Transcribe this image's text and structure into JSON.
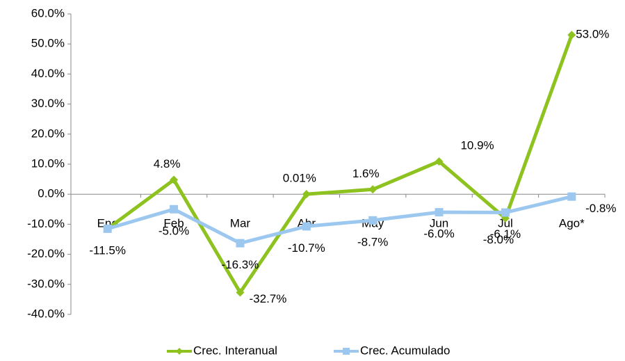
{
  "chart_data": {
    "type": "line",
    "categories": [
      "Ene",
      "Feb",
      "Mar",
      "Abr",
      "May",
      "Jun",
      "Jul",
      "Ago*"
    ],
    "series": [
      {
        "name": "Crec. Interanual",
        "color": "#8dc21f",
        "marker": "diamond",
        "values": [
          -11.5,
          4.8,
          -32.7,
          0.01,
          1.6,
          10.9,
          -8.0,
          53.0
        ],
        "value_labels": [
          null,
          "4.8%",
          "-32.7%",
          "0.01%",
          "1.6%",
          "10.9%",
          "-8.0%",
          "53.0%"
        ]
      },
      {
        "name": "Crec. Acumulado",
        "color": "#9cc8f0",
        "marker": "square",
        "values": [
          -11.5,
          -5.0,
          -16.3,
          -10.7,
          -8.7,
          -6.0,
          -6.1,
          -0.8
        ],
        "value_labels": [
          "-11.5%",
          "-5.0%",
          "-16.3%",
          "-10.7%",
          "-8.7%",
          "-6.0%",
          "-6.1%",
          "-0.8%"
        ]
      }
    ],
    "ylim": [
      -40,
      60
    ],
    "yticks": [
      {
        "value": -40,
        "label": "-40.0%"
      },
      {
        "value": -30,
        "label": "-30.0%"
      },
      {
        "value": -20,
        "label": "-20.0%"
      },
      {
        "value": -10,
        "label": "-10.0%"
      },
      {
        "value": 0,
        "label": "0.0%"
      },
      {
        "value": 10,
        "label": "10.0%"
      },
      {
        "value": 20,
        "label": "20.0%"
      },
      {
        "value": 30,
        "label": "30.0%"
      },
      {
        "value": 40,
        "label": "40.0%"
      },
      {
        "value": 50,
        "label": "50.0%"
      },
      {
        "value": 60,
        "label": "60.0%"
      }
    ],
    "grid": false,
    "legend": "bottom"
  }
}
